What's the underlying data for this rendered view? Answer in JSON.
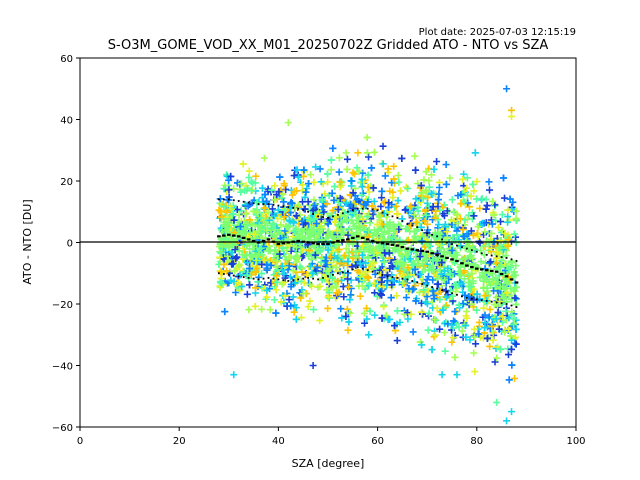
{
  "chart_data": {
    "type": "scatter",
    "title": "S-O3M_GOME_VOD_XX_M01_20250702Z Gridded ATO - NTO vs SZA",
    "plot_date": "Plot date: 2025-07-03 12:15:19",
    "xlabel": "SZA [degree]",
    "ylabel": "ATO - NTO [DU]",
    "xlim": [
      0,
      100
    ],
    "ylim": [
      -60,
      60
    ],
    "x_ticks": [
      "0",
      "20",
      "40",
      "60",
      "80",
      "100"
    ],
    "y_ticks": [
      "−60",
      "−40",
      "−20",
      "0",
      "20",
      "40",
      "60"
    ],
    "x_tick_values": [
      0,
      20,
      40,
      60,
      80,
      100
    ],
    "y_tick_values": [
      -60,
      -40,
      -20,
      0,
      20,
      40,
      60
    ],
    "reference_line_y": 0,
    "scatter_x_range": [
      28,
      88
    ],
    "colormap": [
      "#1a3fd6",
      "#0a84ff",
      "#17d4ee",
      "#56ffa0",
      "#a6ff55",
      "#e4f22a",
      "#ffc400"
    ],
    "dominant_color": "#7dff72",
    "mean_series": {
      "x": [
        28,
        30,
        32,
        34,
        36,
        38,
        40,
        42,
        44,
        46,
        48,
        50,
        52,
        54,
        56,
        58,
        60,
        62,
        64,
        66,
        68,
        70,
        72,
        74,
        76,
        78,
        80,
        82,
        84,
        86,
        88
      ],
      "y": [
        2,
        2.5,
        2,
        1,
        0,
        1,
        -0.5,
        0,
        0.5,
        0,
        -0.5,
        -0.5,
        0.5,
        1,
        2,
        1,
        0,
        -0.5,
        -1,
        -2,
        -2.5,
        -3,
        -4,
        -5,
        -6,
        -7.5,
        -8.5,
        -9,
        -9.5,
        -11,
        -13
      ],
      "color": "#000000"
    },
    "upper_band": {
      "x": [
        28,
        30,
        32,
        34,
        36,
        38,
        40,
        42,
        44,
        46,
        48,
        50,
        52,
        54,
        56,
        58,
        60,
        62,
        64,
        66,
        68,
        70,
        72,
        74,
        76,
        78,
        80,
        82,
        84,
        86,
        88
      ],
      "y": [
        14,
        14,
        13.5,
        13,
        12.5,
        12.5,
        12,
        11.5,
        11,
        10,
        8.5,
        8,
        9,
        10,
        11,
        11,
        10.5,
        9,
        8,
        6,
        5,
        3,
        2,
        0,
        -1,
        -2,
        -3,
        -4,
        -4.5,
        -5,
        -6
      ]
    },
    "lower_band": {
      "x": [
        28,
        30,
        32,
        34,
        36,
        38,
        40,
        42,
        44,
        46,
        48,
        50,
        52,
        54,
        56,
        58,
        60,
        62,
        64,
        66,
        68,
        70,
        72,
        74,
        76,
        78,
        80,
        82,
        84,
        86,
        88
      ],
      "y": [
        -10,
        -10.5,
        -11,
        -11.5,
        -12,
        -11.5,
        -12,
        -12.5,
        -12,
        -11.5,
        -12,
        -11,
        -10,
        -9.5,
        -8,
        -9,
        -10,
        -11,
        -11.5,
        -12,
        -13,
        -14,
        -15,
        -16,
        -17,
        -18,
        -18.5,
        -19,
        -19.5,
        -20,
        -21
      ]
    }
  }
}
